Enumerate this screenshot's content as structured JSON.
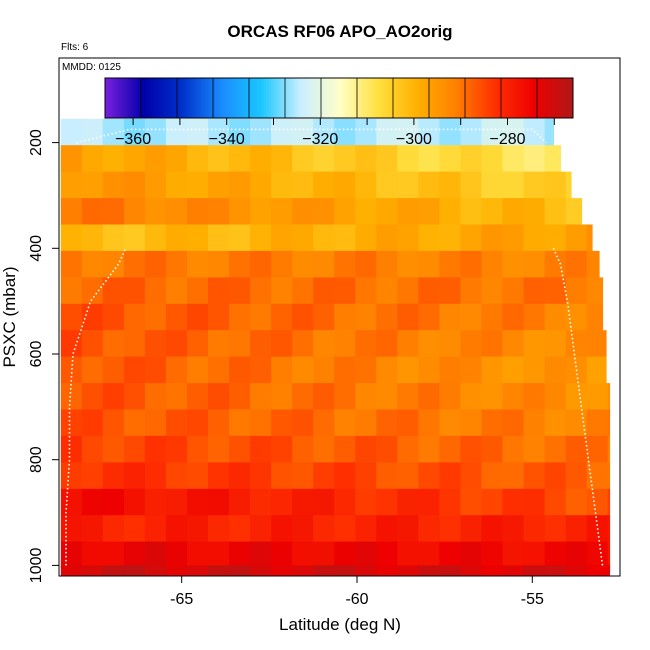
{
  "chart_data": {
    "type": "heatmap",
    "title": "ORCAS RF06 APO_AO2orig",
    "notes": [
      "Flts: 6",
      "MMDD: 0125"
    ],
    "xlabel": "Latitude (deg N)",
    "ylabel": "PSXC (mbar)",
    "xlim": [
      -68.5,
      -52.5
    ],
    "ylim": [
      1020,
      40
    ],
    "x_ticks": [
      -65,
      -60,
      -55
    ],
    "y_ticks": [
      200,
      400,
      600,
      800,
      1000
    ],
    "colorbar": {
      "range": [
        -366,
        -266
      ],
      "ticks": [
        -360,
        -340,
        -320,
        -300,
        -280
      ],
      "colors": [
        "#7a20e0",
        "#0000a8",
        "#0033cc",
        "#1a8cff",
        "#1ac6ff",
        "#c8eeff",
        "#ffffc8",
        "#ffe040",
        "#ffb000",
        "#ff8000",
        "#ff3000",
        "#ee0000",
        "#b01818"
      ]
    },
    "rows": [
      {
        "p": 180,
        "x_end": -54.4,
        "left": -326,
        "right": -324
      },
      {
        "p": 230,
        "x_end": -54.2,
        "left": -296,
        "right": -310
      },
      {
        "p": 280,
        "x_end": -53.9,
        "left": -294,
        "right": -306
      },
      {
        "p": 330,
        "x_end": -53.6,
        "left": -290,
        "right": -302
      },
      {
        "p": 380,
        "x_end": -53.3,
        "left": -302,
        "right": -296
      },
      {
        "p": 430,
        "x_end": -53.1,
        "left": -290,
        "right": -292
      },
      {
        "p": 480,
        "x_end": -53.0,
        "left": -288,
        "right": -290
      },
      {
        "p": 530,
        "x_end": -53.0,
        "left": -286,
        "right": -292
      },
      {
        "p": 580,
        "x_end": -52.9,
        "left": -286,
        "right": -294
      },
      {
        "p": 630,
        "x_end": -52.9,
        "left": -286,
        "right": -296
      },
      {
        "p": 680,
        "x_end": -52.8,
        "left": -286,
        "right": -294
      },
      {
        "p": 730,
        "x_end": -52.8,
        "left": -286,
        "right": -292
      },
      {
        "p": 780,
        "x_end": -52.8,
        "left": -284,
        "right": -290
      },
      {
        "p": 830,
        "x_end": -52.8,
        "left": -282,
        "right": -288
      },
      {
        "p": 880,
        "x_end": -52.8,
        "left": -276,
        "right": -286
      },
      {
        "p": 930,
        "x_end": -52.8,
        "left": -280,
        "right": -280
      },
      {
        "p": 980,
        "x_end": -52.8,
        "left": -274,
        "right": -276
      },
      {
        "p": 1025,
        "x_end": -52.8,
        "left": -270,
        "right": -272
      }
    ],
    "flight_track": {
      "left": [
        [
          -68.3,
          1000
        ],
        [
          -68.3,
          900
        ],
        [
          -68.2,
          800
        ],
        [
          -68.2,
          700
        ],
        [
          -68.1,
          600
        ],
        [
          -67.6,
          500
        ],
        [
          -66.8,
          430
        ],
        [
          -66.6,
          400
        ]
      ],
      "right": [
        [
          -53.0,
          1000
        ],
        [
          -53.2,
          900
        ],
        [
          -53.4,
          800
        ],
        [
          -53.6,
          700
        ],
        [
          -53.8,
          600
        ],
        [
          -54.0,
          500
        ],
        [
          -54.2,
          430
        ],
        [
          -54.4,
          400
        ]
      ],
      "top": [
        [
          -68.0,
          200
        ],
        [
          -66.5,
          175
        ],
        [
          -55,
          175
        ],
        [
          -54.6,
          200
        ]
      ]
    }
  }
}
